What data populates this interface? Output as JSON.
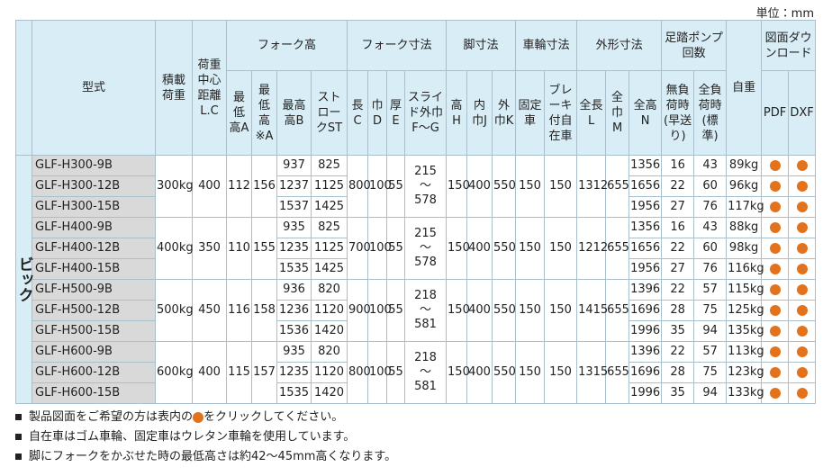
{
  "unit": "単位：mm",
  "table": {
    "side_label": "ビック",
    "group_headers": [
      "型式",
      "積載荷重",
      "荷重中心距離L.C",
      "フォーク高",
      "フォーク寸法",
      "脚寸法",
      "車輪寸法",
      "外形寸法",
      "足踏ポンプ回数",
      "自重",
      "図面ダウンロード"
    ],
    "sub_headers": [
      "最低高A",
      "最低高※A",
      "最高高B",
      "ストロークST",
      "長C",
      "巾D",
      "厚E",
      "スライド外巾F〜G",
      "高H",
      "内巾J",
      "外巾K",
      "固定車",
      "ブレーキ付自在車",
      "全長L",
      "全巾M",
      "全高N",
      "無負荷時(早送り)",
      "全負荷時(標準)",
      "PDF",
      "DXF"
    ],
    "groups": [
      {
        "capacity": "300kg",
        "load_center": 400,
        "min_a": 112,
        "min_a2": 156,
        "fork_length": 800,
        "fork_width": 100,
        "fork_thickness": 55,
        "slide": [
          "215",
          "〜",
          "578"
        ],
        "leg_h": 150,
        "leg_j": 400,
        "leg_k": 550,
        "wheel_fixed": 150,
        "wheel_brake": 150,
        "length": 1312,
        "width": 655,
        "rows": [
          {
            "model": "GLF-H300-9B",
            "max_height": 937,
            "stroke": 825,
            "height": 1356,
            "pump_no_load": 16,
            "pump_full_load": 43,
            "weight": "89kg"
          },
          {
            "model": "GLF-H300-12B",
            "max_height": 1237,
            "stroke": 1125,
            "height": 1656,
            "pump_no_load": 22,
            "pump_full_load": 60,
            "weight": "96kg"
          },
          {
            "model": "GLF-H300-15B",
            "max_height": 1537,
            "stroke": 1425,
            "height": 1956,
            "pump_no_load": 27,
            "pump_full_load": 76,
            "weight": "117kg"
          }
        ]
      },
      {
        "capacity": "400kg",
        "load_center": 350,
        "min_a": 110,
        "min_a2": 155,
        "fork_length": 700,
        "fork_width": 100,
        "fork_thickness": 55,
        "slide": [
          "215",
          "〜",
          "578"
        ],
        "leg_h": 150,
        "leg_j": 400,
        "leg_k": 550,
        "wheel_fixed": 150,
        "wheel_brake": 150,
        "length": 1212,
        "width": 655,
        "rows": [
          {
            "model": "GLF-H400-9B",
            "max_height": 935,
            "stroke": 825,
            "height": 1356,
            "pump_no_load": 16,
            "pump_full_load": 43,
            "weight": "88kg"
          },
          {
            "model": "GLF-H400-12B",
            "max_height": 1235,
            "stroke": 1125,
            "height": 1656,
            "pump_no_load": 22,
            "pump_full_load": 60,
            "weight": "98kg"
          },
          {
            "model": "GLF-H400-15B",
            "max_height": 1535,
            "stroke": 1425,
            "height": 1956,
            "pump_no_load": 27,
            "pump_full_load": 76,
            "weight": "116kg"
          }
        ]
      },
      {
        "capacity": "500kg",
        "load_center": 450,
        "min_a": 116,
        "min_a2": 158,
        "fork_length": 900,
        "fork_width": 100,
        "fork_thickness": 55,
        "slide": [
          "218",
          "〜",
          "581"
        ],
        "leg_h": 150,
        "leg_j": 400,
        "leg_k": 550,
        "wheel_fixed": 150,
        "wheel_brake": 150,
        "length": 1415,
        "width": 655,
        "rows": [
          {
            "model": "GLF-H500-9B",
            "max_height": 936,
            "stroke": 820,
            "height": 1396,
            "pump_no_load": 22,
            "pump_full_load": 57,
            "weight": "115kg"
          },
          {
            "model": "GLF-H500-12B",
            "max_height": 1236,
            "stroke": 1120,
            "height": 1696,
            "pump_no_load": 28,
            "pump_full_load": 75,
            "weight": "125kg"
          },
          {
            "model": "GLF-H500-15B",
            "max_height": 1536,
            "stroke": 1420,
            "height": 1996,
            "pump_no_load": 35,
            "pump_full_load": 94,
            "weight": "135kg"
          }
        ]
      },
      {
        "capacity": "600kg",
        "load_center": 400,
        "min_a": 115,
        "min_a2": 157,
        "fork_length": 800,
        "fork_width": 100,
        "fork_thickness": 55,
        "slide": [
          "218",
          "〜",
          "581"
        ],
        "leg_h": 150,
        "leg_j": 400,
        "leg_k": 550,
        "wheel_fixed": 150,
        "wheel_brake": 150,
        "length": 1315,
        "width": 655,
        "rows": [
          {
            "model": "GLF-H600-9B",
            "max_height": 935,
            "stroke": 820,
            "height": 1396,
            "pump_no_load": 22,
            "pump_full_load": 57,
            "weight": "113kg"
          },
          {
            "model": "GLF-H600-12B",
            "max_height": 1235,
            "stroke": 1120,
            "height": 1696,
            "pump_no_load": 28,
            "pump_full_load": 75,
            "weight": "123kg"
          },
          {
            "model": "GLF-H600-15B",
            "max_height": 1535,
            "stroke": 1420,
            "height": 1996,
            "pump_no_load": 35,
            "pump_full_load": 94,
            "weight": "133kg"
          }
        ]
      }
    ]
  },
  "notes": [
    [
      "製品図面をご希望の方は表内の",
      "をクリックしてください。"
    ],
    [
      "自在車はゴム車輪、固定車はウレタン車輪を使用しています。"
    ],
    [
      "脚にフォークをかぶせた時の最低高さは約42〜45mm高くなります。"
    ]
  ]
}
